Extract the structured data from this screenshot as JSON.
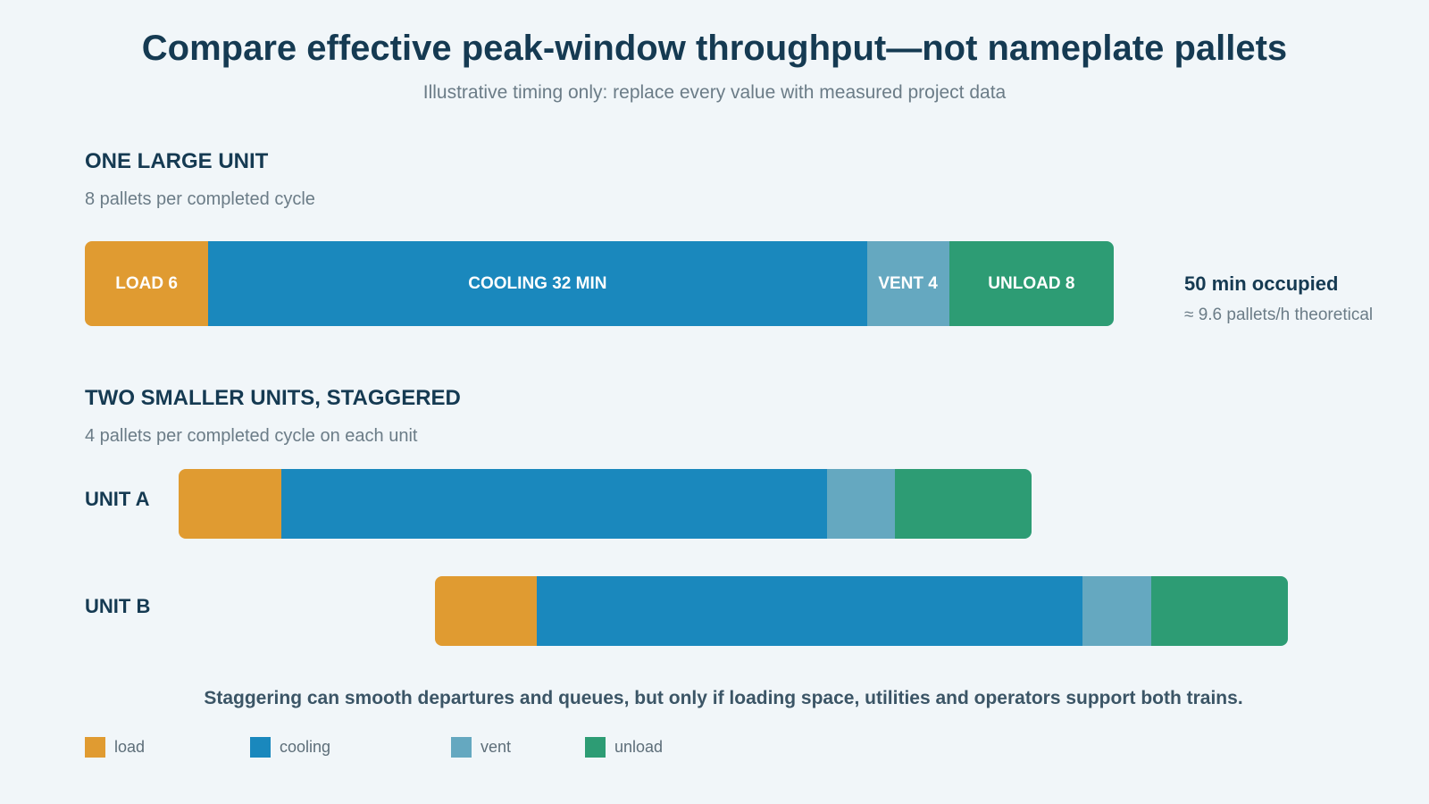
{
  "title": "Compare effective peak-window throughput—not nameplate pallets",
  "subtitle": "Illustrative timing only: replace every value with measured project data",
  "colors": {
    "load": "#e09b31",
    "cooling": "#1a88bd",
    "vent": "#65a8c0",
    "unload": "#2d9c74",
    "heading": "#153a52",
    "background": "#f1f6f9"
  },
  "large_unit": {
    "heading": "ONE LARGE UNIT",
    "note": "8 pallets per completed cycle",
    "segments": [
      {
        "phase": "load",
        "minutes": 6,
        "label": "LOAD 6"
      },
      {
        "phase": "cooling",
        "minutes": 32,
        "label": "COOLING 32 MIN"
      },
      {
        "phase": "vent",
        "minutes": 4,
        "label": "VENT 4"
      },
      {
        "phase": "unload",
        "minutes": 8,
        "label": "UNLOAD 8"
      }
    ],
    "occupied": "50 min occupied",
    "throughput": "≈ 9.6 pallets/h theoretical"
  },
  "small_units": {
    "heading": "TWO SMALLER UNITS, STAGGERED",
    "note": "4 pallets per completed cycle on each unit",
    "units": [
      {
        "label": "UNIT A",
        "offset_minutes": 0
      },
      {
        "label": "UNIT B",
        "offset_minutes": 15
      }
    ],
    "segments": [
      {
        "phase": "load",
        "minutes": 6
      },
      {
        "phase": "cooling",
        "minutes": 32
      },
      {
        "phase": "vent",
        "minutes": 4
      },
      {
        "phase": "unload",
        "minutes": 8
      }
    ]
  },
  "caption": "Staggering can smooth departures and queues, but only if loading space, utilities and operators support both trains.",
  "legend": [
    {
      "phase": "load",
      "label": "load"
    },
    {
      "phase": "cooling",
      "label": "cooling"
    },
    {
      "phase": "vent",
      "label": "vent"
    },
    {
      "phase": "unload",
      "label": "unload"
    }
  ]
}
